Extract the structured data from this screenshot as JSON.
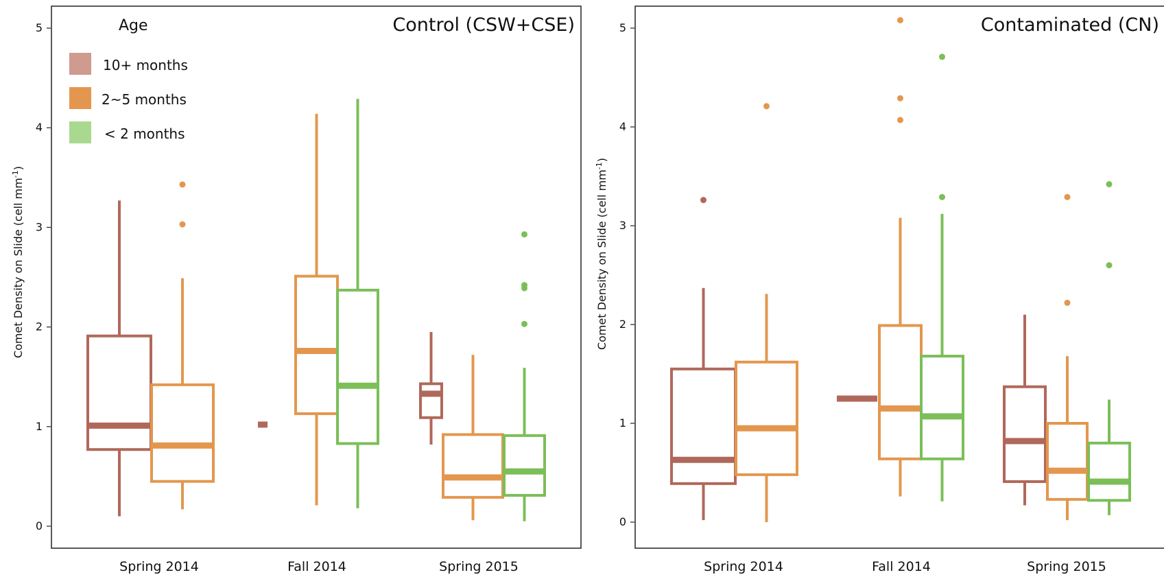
{
  "chart_data": [
    {
      "type": "box",
      "title": "Control (CSW+CSE)",
      "ylabel": "Comet Density on Slide (cell mm",
      "ylabel_sup": "-1",
      "ylabel_close": ")",
      "ylim": [
        0,
        5
      ],
      "yticks": [
        "0",
        "1",
        "2",
        "3",
        "4",
        "5"
      ],
      "categories": [
        "Spring 2014",
        "Fall 2014",
        "Spring 2015"
      ],
      "legend": {
        "title": "Age",
        "entries": [
          "10+ months",
          "2~5 months",
          "< 2 months"
        ]
      },
      "series": [
        {
          "name": "10+ months",
          "color": "#b0685a",
          "boxes": [
            {
              "category": "Spring 2014",
              "min": 0.1,
              "q1": 0.77,
              "median": 1.01,
              "q3": 1.91,
              "max": 3.27,
              "outliers": []
            },
            {
              "category": "Fall 2014",
              "min": 1.02,
              "q1": 1.02,
              "median": 1.02,
              "q3": 1.02,
              "max": 1.02,
              "outliers": []
            },
            {
              "category": "Spring 2015",
              "min": 0.82,
              "q1": 1.09,
              "median": 1.33,
              "q3": 1.43,
              "max": 1.95,
              "outliers": []
            }
          ]
        },
        {
          "name": "2~5 months",
          "color": "#e3974e",
          "boxes": [
            {
              "category": "Spring 2014",
              "min": 0.17,
              "q1": 0.45,
              "median": 0.81,
              "q3": 1.42,
              "max": 2.49,
              "outliers": [
                3.03,
                3.43
              ]
            },
            {
              "category": "Fall 2014",
              "min": 0.21,
              "q1": 1.13,
              "median": 1.76,
              "q3": 2.51,
              "max": 4.14,
              "outliers": []
            },
            {
              "category": "Spring 2015",
              "min": 0.06,
              "q1": 0.29,
              "median": 0.49,
              "q3": 0.92,
              "max": 1.72,
              "outliers": []
            }
          ]
        },
        {
          "name": "< 2 months",
          "color": "#7bbf58",
          "boxes": [
            {
              "category": "Fall 2014",
              "min": 0.18,
              "q1": 0.83,
              "median": 1.41,
              "q3": 2.37,
              "max": 4.29,
              "outliers": []
            },
            {
              "category": "Spring 2015",
              "min": 0.05,
              "q1": 0.31,
              "median": 0.55,
              "q3": 0.91,
              "max": 1.59,
              "outliers": [
                2.03,
                2.39,
                2.42,
                2.93
              ]
            }
          ]
        }
      ]
    },
    {
      "type": "box",
      "title": "Contaminated (CN)",
      "ylabel": "Comet Density on Slide (cell mm",
      "ylabel_sup": "-1",
      "ylabel_close": ")",
      "ylim": [
        0,
        5
      ],
      "yticks": [
        "0",
        "1",
        "2",
        "3",
        "4",
        "5"
      ],
      "categories": [
        "Spring 2014",
        "Fall 2014",
        "Spring 2015"
      ],
      "series": [
        {
          "name": "10+ months",
          "color": "#b0685a",
          "boxes": [
            {
              "category": "Spring 2014",
              "min": 0.02,
              "q1": 0.39,
              "median": 0.63,
              "q3": 1.55,
              "max": 2.37,
              "outliers": [
                3.26
              ]
            },
            {
              "category": "Fall 2014",
              "min": 1.25,
              "q1": 1.25,
              "median": 1.25,
              "q3": 1.25,
              "max": 1.25,
              "outliers": []
            },
            {
              "category": "Spring 2015",
              "min": 0.17,
              "q1": 0.41,
              "median": 0.82,
              "q3": 1.37,
              "max": 2.1,
              "outliers": []
            }
          ]
        },
        {
          "name": "2~5 months",
          "color": "#e3974e",
          "boxes": [
            {
              "category": "Spring 2014",
              "min": 0.0,
              "q1": 0.48,
              "median": 0.95,
              "q3": 1.62,
              "max": 2.31,
              "outliers": [
                4.21
              ]
            },
            {
              "category": "Fall 2014",
              "min": 0.26,
              "q1": 0.64,
              "median": 1.15,
              "q3": 1.99,
              "max": 3.08,
              "outliers": [
                4.07,
                4.29,
                5.08
              ]
            },
            {
              "category": "Spring 2015",
              "min": 0.02,
              "q1": 0.23,
              "median": 0.52,
              "q3": 1.0,
              "max": 1.68,
              "outliers": [
                2.22,
                3.29
              ]
            }
          ]
        },
        {
          "name": "< 2 months",
          "color": "#7bbf58",
          "boxes": [
            {
              "category": "Fall 2014",
              "min": 0.21,
              "q1": 0.64,
              "median": 1.07,
              "q3": 1.68,
              "max": 3.12,
              "outliers": [
                3.29,
                4.71
              ]
            },
            {
              "category": "Spring 2015",
              "min": 0.07,
              "q1": 0.22,
              "median": 0.41,
              "q3": 0.8,
              "max": 1.24,
              "outliers": [
                2.6,
                3.42
              ]
            }
          ]
        }
      ]
    }
  ]
}
